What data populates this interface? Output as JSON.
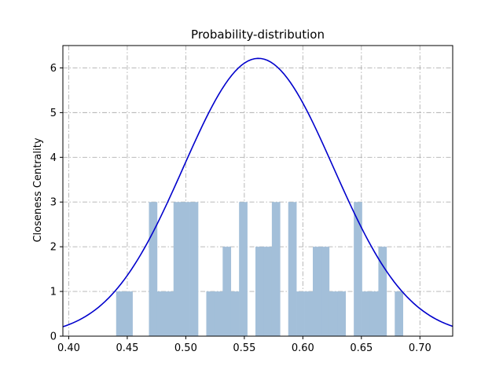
{
  "chart_data": {
    "type": "bar",
    "title": "Probability-distribution",
    "xlabel": "",
    "ylabel": "Closeness Centrality",
    "xlim": [
      0.395,
      0.728
    ],
    "ylim": [
      0,
      6.5
    ],
    "xticks": [
      "0.40",
      "0.45",
      "0.50",
      "0.55",
      "0.60",
      "0.65",
      "0.70"
    ],
    "yticks": [
      "0",
      "1",
      "2",
      "3",
      "4",
      "5",
      "6"
    ],
    "grid": true,
    "bar_width": 0.007,
    "histogram": {
      "x": [
        0.444,
        0.451,
        0.472,
        0.479,
        0.486,
        0.493,
        0.5,
        0.507,
        0.521,
        0.528,
        0.535,
        0.542,
        0.549,
        0.563,
        0.57,
        0.577,
        0.591,
        0.598,
        0.605,
        0.612,
        0.619,
        0.626,
        0.633,
        0.647,
        0.654,
        0.661,
        0.668,
        0.682
      ],
      "values": [
        1,
        1,
        3,
        1,
        1,
        3,
        3,
        3,
        1,
        1,
        2,
        1,
        3,
        2,
        2,
        3,
        3,
        1,
        1,
        2,
        2,
        1,
        1,
        3,
        1,
        1,
        2,
        1
      ]
    },
    "fit_curve": {
      "type": "normal-pdf",
      "mean": 0.562,
      "std": 0.0642
    }
  }
}
